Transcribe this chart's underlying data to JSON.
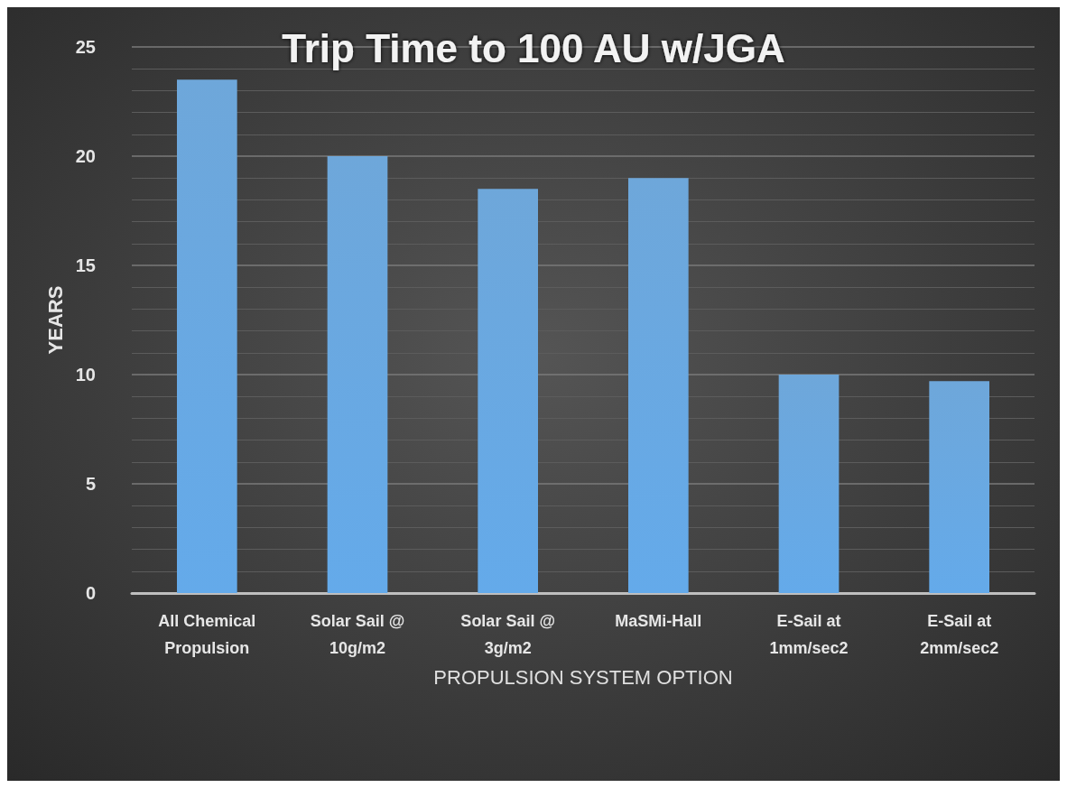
{
  "chart_data": {
    "type": "bar",
    "title": "Trip Time to 100 AU w/JGA",
    "xlabel": "PROPULSION SYSTEM OPTION",
    "ylabel": "YEARS",
    "categories": [
      "All Chemical\nPropulsion",
      "Solar Sail @\n10g/m2",
      "Solar Sail @\n3g/m2",
      "MaSMi-Hall",
      "E-Sail at\n1mm/sec2",
      "E-Sail at\n2mm/sec2"
    ],
    "values": [
      23.5,
      20,
      18.5,
      19,
      10,
      9.7
    ],
    "color": "#5b9bd5",
    "ylim": [
      0,
      25
    ],
    "yticks": [
      0,
      5,
      10,
      15,
      20,
      25
    ],
    "grid": "y"
  }
}
